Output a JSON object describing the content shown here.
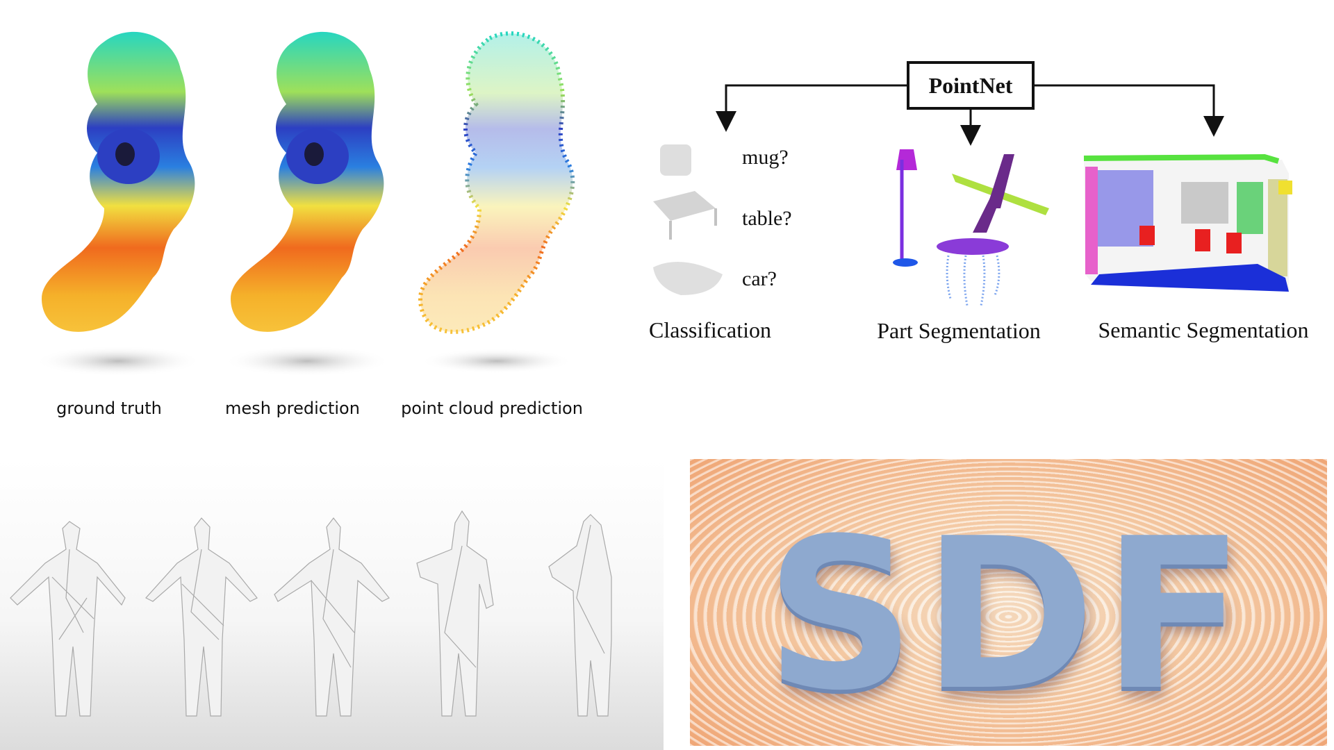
{
  "top_left": {
    "captions": [
      "ground truth",
      "mesh prediction",
      "point cloud prediction"
    ]
  },
  "pointnet": {
    "title": "PointNet",
    "questions": [
      "mug?",
      "table?",
      "car?"
    ],
    "tasks": [
      "Classification",
      "Part Segmentation",
      "Semantic Segmentation"
    ]
  },
  "sdf": {
    "text": "SDF"
  }
}
